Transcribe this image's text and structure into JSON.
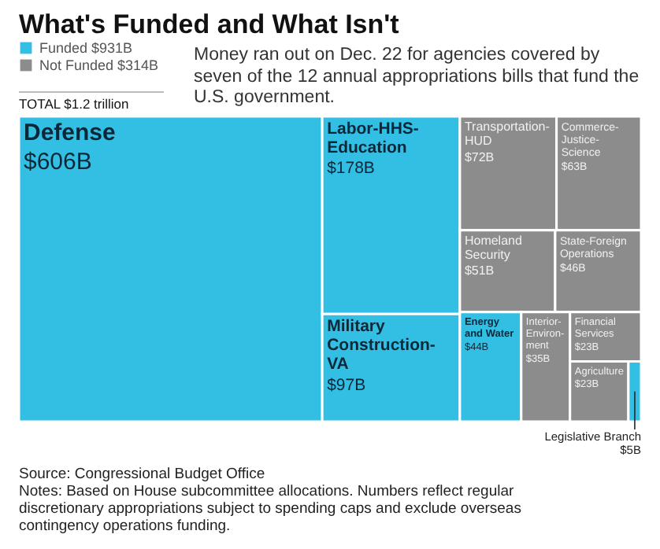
{
  "chart_data": {
    "type": "other",
    "title": "What's Funded and What Isn't",
    "subtitle": "Money ran out on Dec. 22 for agencies covered by seven of the 12 annual appropriations bills that fund the U.S. government.",
    "categories": [
      "Defense",
      "Labor-HHS-Education",
      "Military Construction-VA",
      "Transportation-HUD",
      "Commerce-Justice-Science",
      "Homeland Security",
      "State-Foreign Operations",
      "Energy and Water",
      "Interior-Environ-ment",
      "Financial Services",
      "Agriculture",
      "Legislative Branch"
    ],
    "series": [
      {
        "name": "Funded $931B",
        "color": "#33bfe3",
        "values": [
          606,
          178,
          97,
          null,
          null,
          null,
          null,
          44,
          null,
          null,
          null,
          5
        ],
        "value_labels": [
          "$606B",
          "$178B",
          "$97B",
          null,
          null,
          null,
          null,
          "$44B",
          null,
          null,
          null,
          "$5B"
        ]
      },
      {
        "name": "Not Funded $314B",
        "color": "#8c8c8c",
        "values": [
          null,
          null,
          null,
          72,
          63,
          51,
          46,
          null,
          35,
          23,
          23,
          null
        ],
        "value_labels": [
          null,
          null,
          null,
          "$72B",
          "$63B",
          "$51B",
          "$46B",
          null,
          "$35B",
          "$23B",
          "$23B",
          null
        ]
      }
    ],
    "legend": "top left",
    "annotations": [
      "TOTAL $1.2 trillion",
      "Source: Congressional Budget Office",
      "Notes: Based on House subcommittee allocations. Numbers reflect regular discretionary appropriations subject to spending caps and exclude overseas contingency operations funding."
    ]
  }
}
